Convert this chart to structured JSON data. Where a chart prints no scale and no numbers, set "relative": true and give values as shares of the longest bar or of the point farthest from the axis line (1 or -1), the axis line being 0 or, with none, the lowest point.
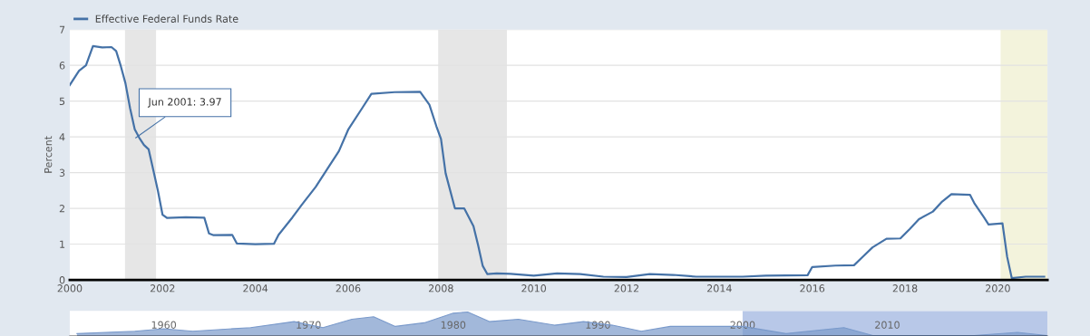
{
  "chart_data": [
    {
      "type": "line",
      "ylabel": "Percent",
      "legend": "top left",
      "grid": "y",
      "marker": "none",
      "line_style": "solid",
      "xlim": [
        2000,
        2021.07
      ],
      "xticks": [
        2000,
        2002,
        2004,
        2006,
        2008,
        2010,
        2012,
        2014,
        2016,
        2018,
        2020
      ],
      "ylim": [
        0,
        7
      ],
      "yticks": [
        0,
        1,
        2,
        3,
        4,
        5,
        6,
        7
      ],
      "bands": [
        {
          "axis": "x",
          "from": 2001.19,
          "to": 2001.86,
          "color": "#e6e6e6"
        },
        {
          "axis": "x",
          "from": 2007.94,
          "to": 2009.42,
          "color": "#e6e6e6"
        },
        {
          "axis": "x",
          "from": 2020.06,
          "to": 2021.07,
          "color": "#f3f3dc"
        }
      ],
      "annotations": [
        {
          "text": "Jun 2001: 3.97",
          "x": 2001.42,
          "y": 3.97
        }
      ],
      "series": [
        {
          "name": "Effective Federal Funds Rate",
          "color": "#4572a7",
          "x": [
            2000.0,
            2000.2,
            2000.35,
            2000.5,
            2000.7,
            2000.9,
            2001.0,
            2001.1,
            2001.2,
            2001.3,
            2001.4,
            2001.5,
            2001.6,
            2001.7,
            2001.8,
            2001.9,
            2002.0,
            2002.1,
            2002.5,
            2002.9,
            2003.0,
            2003.1,
            2003.5,
            2003.6,
            2004.0,
            2004.4,
            2004.5,
            2004.8,
            2005.0,
            2005.3,
            2005.6,
            2005.8,
            2006.0,
            2006.3,
            2006.5,
            2007.0,
            2007.55,
            2007.75,
            2007.9,
            2008.0,
            2008.1,
            2008.3,
            2008.5,
            2008.7,
            2008.8,
            2008.9,
            2009.0,
            2009.2,
            2009.5,
            2010.0,
            2010.5,
            2011.0,
            2011.5,
            2012.0,
            2012.5,
            2013.0,
            2013.5,
            2014.5,
            2015.0,
            2015.9,
            2016.0,
            2016.5,
            2016.9,
            2017.1,
            2017.3,
            2017.6,
            2017.9,
            2018.1,
            2018.3,
            2018.6,
            2018.8,
            2019.0,
            2019.4,
            2019.5,
            2019.7,
            2019.8,
            2020.1,
            2020.2,
            2020.3,
            2020.6,
            2021.0
          ],
          "values": [
            5.45,
            5.85,
            6.0,
            6.54,
            6.5,
            6.51,
            6.4,
            5.98,
            5.5,
            4.8,
            4.21,
            3.97,
            3.77,
            3.65,
            3.07,
            2.49,
            1.82,
            1.73,
            1.75,
            1.74,
            1.3,
            1.25,
            1.26,
            1.02,
            1.0,
            1.01,
            1.26,
            1.75,
            2.1,
            2.6,
            3.2,
            3.6,
            4.2,
            4.8,
            5.2,
            5.25,
            5.26,
            4.9,
            4.3,
            3.94,
            2.98,
            2.0,
            2.0,
            1.5,
            0.97,
            0.39,
            0.16,
            0.18,
            0.17,
            0.12,
            0.18,
            0.16,
            0.09,
            0.08,
            0.16,
            0.14,
            0.09,
            0.09,
            0.12,
            0.13,
            0.36,
            0.4,
            0.41,
            0.66,
            0.91,
            1.15,
            1.16,
            1.42,
            1.7,
            1.91,
            2.19,
            2.4,
            2.38,
            2.13,
            1.75,
            1.55,
            1.58,
            0.65,
            0.05,
            0.09,
            0.09
          ]
        }
      ]
    },
    {
      "type": "area",
      "relative": true,
      "xlim": [
        1953.5,
        2021.07
      ],
      "xticks": [
        1960,
        1970,
        1980,
        1990,
        2000,
        2010
      ],
      "bands": [
        {
          "axis": "x",
          "from": 2000,
          "to": 2021.07,
          "color": "#b8c8e8"
        }
      ],
      "series": [
        {
          "color": "#7a9acb",
          "x": [
            1954,
            1958,
            1960,
            1962,
            1966,
            1969,
            1971,
            1973,
            1974.5,
            1976,
            1978,
            1980,
            1981,
            1982.5,
            1984.5,
            1987,
            1989,
            1991,
            1993,
            1995,
            2000,
            2003,
            2007,
            2009,
            2016,
            2019,
            2021
          ],
          "values": [
            0.1,
            0.2,
            0.3,
            0.2,
            0.35,
            0.6,
            0.35,
            0.7,
            0.8,
            0.4,
            0.55,
            0.95,
            1.0,
            0.6,
            0.7,
            0.45,
            0.6,
            0.45,
            0.2,
            0.4,
            0.4,
            0.1,
            0.35,
            0.02,
            0.02,
            0.15,
            0.02
          ]
        }
      ]
    }
  ]
}
